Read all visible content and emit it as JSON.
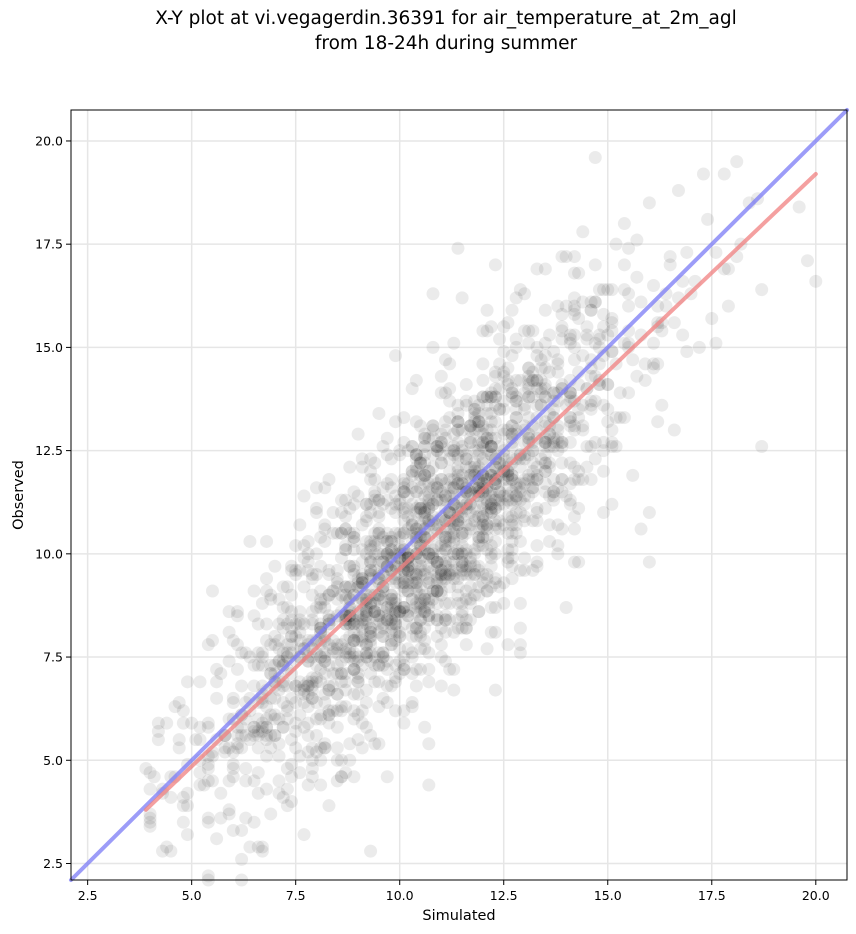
{
  "chart_data": {
    "type": "scatter",
    "title_line1": "X-Y plot at vi.vegagerdin.36391 for air_temperature_at_2m_agl",
    "title_line2": "from 18-24h during summer",
    "xlabel": "Simulated",
    "ylabel": "Observed",
    "xlim": [
      2.1,
      20.75
    ],
    "ylim": [
      2.1,
      20.75
    ],
    "x_ticks": [
      "2.5",
      "5.0",
      "7.5",
      "10.0",
      "12.5",
      "15.0",
      "17.5",
      "20.0"
    ],
    "y_ticks": [
      "2.5",
      "5.0",
      "7.5",
      "10.0",
      "12.5",
      "15.0",
      "17.5",
      "20.0"
    ],
    "grid": true,
    "point_color": "#000000",
    "point_opacity": 0.08,
    "approx_point_count": 2000,
    "points": [
      [
        3.9,
        4.8
      ],
      [
        4.1,
        4.6
      ],
      [
        4.2,
        5.5
      ],
      [
        4.3,
        4.2
      ],
      [
        4.6,
        4.6
      ],
      [
        4.7,
        5.3
      ],
      [
        4.8,
        5.9
      ],
      [
        4.8,
        4.1
      ],
      [
        5.2,
        4.7
      ],
      [
        5.4,
        5.9
      ],
      [
        5.5,
        9.1
      ],
      [
        5.7,
        7.1
      ],
      [
        5.9,
        8.6
      ],
      [
        6.1,
        8.6
      ],
      [
        6.0,
        4.9
      ],
      [
        6.2,
        5.3
      ],
      [
        6.3,
        7.6
      ],
      [
        6.3,
        3.6
      ],
      [
        6.4,
        2.9
      ],
      [
        6.4,
        10.3
      ],
      [
        6.5,
        4.5
      ],
      [
        6.6,
        5.7
      ],
      [
        6.7,
        8.8
      ],
      [
        6.8,
        10.3
      ],
      [
        6.9,
        6.1
      ],
      [
        6.9,
        3.7
      ],
      [
        7.0,
        9.7
      ],
      [
        7.1,
        4.2
      ],
      [
        7.2,
        6.9
      ],
      [
        7.3,
        3.9
      ],
      [
        7.4,
        4.0
      ],
      [
        7.5,
        5.9
      ],
      [
        7.6,
        8.6
      ],
      [
        7.7,
        10.2
      ],
      [
        7.8,
        5.2
      ],
      [
        7.9,
        9.5
      ],
      [
        8.0,
        6.9
      ],
      [
        8.1,
        4.4
      ],
      [
        8.2,
        11.6
      ],
      [
        8.2,
        7.6
      ],
      [
        8.3,
        8.4
      ],
      [
        8.5,
        5.8
      ],
      [
        8.6,
        4.6
      ],
      [
        8.6,
        11.3
      ],
      [
        8.8,
        12.1
      ],
      [
        8.9,
        6.2
      ],
      [
        9.0,
        12.9
      ],
      [
        9.1,
        9.3
      ],
      [
        9.2,
        7.5
      ],
      [
        9.3,
        11.8
      ],
      [
        9.4,
        5.4
      ],
      [
        9.5,
        13.4
      ],
      [
        9.6,
        8.0
      ],
      [
        9.7,
        6.4
      ],
      [
        9.7,
        4.6
      ],
      [
        9.8,
        12.3
      ],
      [
        9.9,
        7.0
      ],
      [
        9.9,
        14.8
      ],
      [
        10.0,
        10.4
      ],
      [
        10.1,
        13.3
      ],
      [
        10.1,
        5.9
      ],
      [
        10.2,
        9.1
      ],
      [
        10.3,
        11.2
      ],
      [
        10.4,
        14.2
      ],
      [
        10.5,
        7.2
      ],
      [
        10.5,
        8.6
      ],
      [
        10.6,
        12.4
      ],
      [
        10.7,
        5.4
      ],
      [
        10.7,
        4.4
      ],
      [
        10.8,
        16.3
      ],
      [
        10.8,
        9.9
      ],
      [
        10.9,
        11.5
      ],
      [
        11.0,
        10.8
      ],
      [
        11.0,
        13.9
      ],
      [
        11.1,
        7.4
      ],
      [
        11.2,
        12.0
      ],
      [
        11.3,
        15.1
      ],
      [
        11.3,
        6.7
      ],
      [
        11.4,
        17.4
      ],
      [
        11.5,
        9.6
      ],
      [
        11.5,
        16.2
      ],
      [
        11.6,
        11.1
      ],
      [
        11.7,
        8.4
      ],
      [
        11.8,
        13.2
      ],
      [
        11.9,
        10.3
      ],
      [
        12.0,
        14.6
      ],
      [
        12.1,
        9.1
      ],
      [
        12.2,
        12.8
      ],
      [
        12.3,
        6.7
      ],
      [
        12.3,
        17.0
      ],
      [
        12.4,
        11.5
      ],
      [
        12.5,
        8.8
      ],
      [
        12.6,
        15.6
      ],
      [
        12.7,
        10.7
      ],
      [
        12.8,
        13.5
      ],
      [
        12.9,
        7.6
      ],
      [
        13.0,
        16.3
      ],
      [
        13.1,
        11.8
      ],
      [
        13.2,
        9.6
      ],
      [
        13.3,
        14.2
      ],
      [
        13.4,
        12.3
      ],
      [
        13.5,
        16.9
      ],
      [
        13.6,
        10.3
      ],
      [
        13.8,
        13.1
      ],
      [
        13.9,
        17.2
      ],
      [
        14.0,
        11.4
      ],
      [
        14.1,
        15.2
      ],
      [
        14.2,
        9.8
      ],
      [
        14.3,
        16.8
      ],
      [
        14.4,
        13.0
      ],
      [
        14.5,
        12.1
      ],
      [
        14.6,
        15.9
      ],
      [
        14.8,
        14.2
      ],
      [
        14.9,
        11.0
      ],
      [
        15.0,
        16.4
      ],
      [
        15.1,
        12.6
      ],
      [
        15.2,
        17.5
      ],
      [
        15.3,
        13.9
      ],
      [
        15.5,
        15.1
      ],
      [
        15.6,
        11.9
      ],
      [
        15.7,
        16.7
      ],
      [
        15.9,
        14.6
      ],
      [
        16.0,
        9.8
      ],
      [
        16.0,
        11.0
      ],
      [
        16.2,
        13.2
      ],
      [
        16.3,
        15.6
      ],
      [
        16.5,
        17.0
      ],
      [
        16.6,
        13.0
      ],
      [
        16.7,
        18.8
      ],
      [
        16.8,
        15.3
      ],
      [
        16.9,
        17.3
      ],
      [
        17.1,
        16.6
      ],
      [
        17.2,
        15.0
      ],
      [
        17.3,
        19.2
      ],
      [
        17.4,
        18.1
      ],
      [
        17.6,
        17.3
      ],
      [
        17.8,
        19.2
      ],
      [
        17.9,
        16.0
      ],
      [
        18.2,
        17.5
      ],
      [
        18.4,
        18.5
      ],
      [
        18.7,
        16.4
      ],
      [
        18.7,
        12.6
      ],
      [
        19.6,
        18.4
      ],
      [
        19.8,
        17.1
      ],
      [
        20.0,
        16.6
      ]
    ],
    "regression_line": {
      "color": "#f08080",
      "x": [
        3.9,
        20.0
      ],
      "y": [
        3.8,
        19.2
      ]
    },
    "identity_line": {
      "color": "#7b7bf5",
      "x": [
        2.1,
        20.75
      ],
      "y": [
        2.1,
        20.75
      ]
    }
  }
}
